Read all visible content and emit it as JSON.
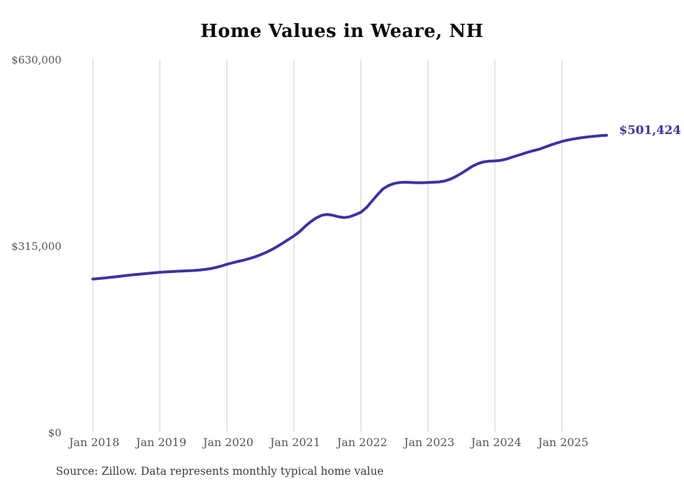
{
  "chart_data": {
    "type": "line",
    "title": "Home Values in Weare, NH",
    "source_note": "Source: Zillow. Data represents monthly typical home value",
    "end_label": "$501,424",
    "latest_value": 501424,
    "line_color": "#3a34a3",
    "grid_color": "#cccccc",
    "ylim": [
      0,
      630000
    ],
    "grid": "vertical-only",
    "legend_position": "none",
    "y_ticks": [
      {
        "value": 630000,
        "label": "$630,000"
      },
      {
        "value": 315000,
        "label": "$315,000"
      },
      {
        "value": 0,
        "label": "$0"
      }
    ],
    "x_tick_labels": [
      "Jan 2018",
      "Jan 2019",
      "Jan 2020",
      "Jan 2021",
      "Jan 2022",
      "Jan 2023",
      "Jan 2024",
      "Jan 2025"
    ],
    "x_tick_interval_months": 12,
    "x_start_month": "2018-01",
    "x_end_month": "2025-09",
    "series": [
      {
        "name": "Typical home value",
        "values": [
          258000,
          258800,
          259700,
          260700,
          261800,
          262900,
          264000,
          265000,
          265900,
          266800,
          267700,
          268600,
          269500,
          270100,
          270600,
          271100,
          271600,
          272000,
          272500,
          273200,
          274200,
          275500,
          277500,
          280000,
          283000,
          285500,
          287800,
          290000,
          292500,
          295500,
          299000,
          303000,
          307700,
          313000,
          318800,
          324800,
          331000,
          338000,
          347000,
          355000,
          361500,
          366000,
          367500,
          366000,
          363500,
          362000,
          363500,
          367000,
          371000,
          379000,
          390000,
          401000,
          411000,
          416500,
          420000,
          421500,
          422000,
          421500,
          421000,
          421200,
          421500,
          422000,
          422500,
          424000,
          427000,
          431500,
          437000,
          443000,
          449000,
          453500,
          456500,
          457500,
          458000,
          459000,
          461000,
          464000,
          467000,
          470000,
          473000,
          475500,
          478000,
          481500,
          485000,
          488000,
          491000,
          493200,
          495000,
          496600,
          498000,
          499000,
          500000,
          500800,
          501424
        ]
      }
    ]
  }
}
